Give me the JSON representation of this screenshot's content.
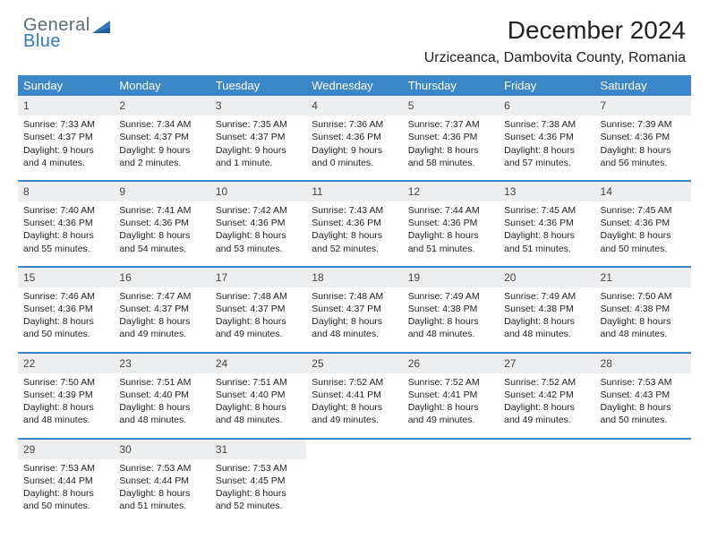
{
  "logo": {
    "word1": "General",
    "word2": "Blue",
    "word1_color": "#5b6b75",
    "word2_color": "#2f7abf",
    "icon_color": "#2f7abf"
  },
  "title": "December 2024",
  "subtitle": "Urziceanca, Dambovita County, Romania",
  "colors": {
    "header_bg": "#3c87c7",
    "header_text": "#ffffff",
    "daynum_bg": "#eceeef",
    "week_divider": "#3c87c7",
    "body_text": "#222222",
    "background": "#ffffff"
  },
  "typography": {
    "title_fontsize": 28,
    "subtitle_fontsize": 16,
    "header_fontsize": 13,
    "daynum_fontsize": 12,
    "body_fontsize": 10.5,
    "font_family": "Arial"
  },
  "day_headers": [
    "Sunday",
    "Monday",
    "Tuesday",
    "Wednesday",
    "Thursday",
    "Friday",
    "Saturday"
  ],
  "weeks": [
    [
      {
        "n": "1",
        "sr": "Sunrise: 7:33 AM",
        "ss": "Sunset: 4:37 PM",
        "dl": "Daylight: 9 hours and 4 minutes."
      },
      {
        "n": "2",
        "sr": "Sunrise: 7:34 AM",
        "ss": "Sunset: 4:37 PM",
        "dl": "Daylight: 9 hours and 2 minutes."
      },
      {
        "n": "3",
        "sr": "Sunrise: 7:35 AM",
        "ss": "Sunset: 4:37 PM",
        "dl": "Daylight: 9 hours and 1 minute."
      },
      {
        "n": "4",
        "sr": "Sunrise: 7:36 AM",
        "ss": "Sunset: 4:36 PM",
        "dl": "Daylight: 9 hours and 0 minutes."
      },
      {
        "n": "5",
        "sr": "Sunrise: 7:37 AM",
        "ss": "Sunset: 4:36 PM",
        "dl": "Daylight: 8 hours and 58 minutes."
      },
      {
        "n": "6",
        "sr": "Sunrise: 7:38 AM",
        "ss": "Sunset: 4:36 PM",
        "dl": "Daylight: 8 hours and 57 minutes."
      },
      {
        "n": "7",
        "sr": "Sunrise: 7:39 AM",
        "ss": "Sunset: 4:36 PM",
        "dl": "Daylight: 8 hours and 56 minutes."
      }
    ],
    [
      {
        "n": "8",
        "sr": "Sunrise: 7:40 AM",
        "ss": "Sunset: 4:36 PM",
        "dl": "Daylight: 8 hours and 55 minutes."
      },
      {
        "n": "9",
        "sr": "Sunrise: 7:41 AM",
        "ss": "Sunset: 4:36 PM",
        "dl": "Daylight: 8 hours and 54 minutes."
      },
      {
        "n": "10",
        "sr": "Sunrise: 7:42 AM",
        "ss": "Sunset: 4:36 PM",
        "dl": "Daylight: 8 hours and 53 minutes."
      },
      {
        "n": "11",
        "sr": "Sunrise: 7:43 AM",
        "ss": "Sunset: 4:36 PM",
        "dl": "Daylight: 8 hours and 52 minutes."
      },
      {
        "n": "12",
        "sr": "Sunrise: 7:44 AM",
        "ss": "Sunset: 4:36 PM",
        "dl": "Daylight: 8 hours and 51 minutes."
      },
      {
        "n": "13",
        "sr": "Sunrise: 7:45 AM",
        "ss": "Sunset: 4:36 PM",
        "dl": "Daylight: 8 hours and 51 minutes."
      },
      {
        "n": "14",
        "sr": "Sunrise: 7:45 AM",
        "ss": "Sunset: 4:36 PM",
        "dl": "Daylight: 8 hours and 50 minutes."
      }
    ],
    [
      {
        "n": "15",
        "sr": "Sunrise: 7:46 AM",
        "ss": "Sunset: 4:36 PM",
        "dl": "Daylight: 8 hours and 50 minutes."
      },
      {
        "n": "16",
        "sr": "Sunrise: 7:47 AM",
        "ss": "Sunset: 4:37 PM",
        "dl": "Daylight: 8 hours and 49 minutes."
      },
      {
        "n": "17",
        "sr": "Sunrise: 7:48 AM",
        "ss": "Sunset: 4:37 PM",
        "dl": "Daylight: 8 hours and 49 minutes."
      },
      {
        "n": "18",
        "sr": "Sunrise: 7:48 AM",
        "ss": "Sunset: 4:37 PM",
        "dl": "Daylight: 8 hours and 48 minutes."
      },
      {
        "n": "19",
        "sr": "Sunrise: 7:49 AM",
        "ss": "Sunset: 4:38 PM",
        "dl": "Daylight: 8 hours and 48 minutes."
      },
      {
        "n": "20",
        "sr": "Sunrise: 7:49 AM",
        "ss": "Sunset: 4:38 PM",
        "dl": "Daylight: 8 hours and 48 minutes."
      },
      {
        "n": "21",
        "sr": "Sunrise: 7:50 AM",
        "ss": "Sunset: 4:38 PM",
        "dl": "Daylight: 8 hours and 48 minutes."
      }
    ],
    [
      {
        "n": "22",
        "sr": "Sunrise: 7:50 AM",
        "ss": "Sunset: 4:39 PM",
        "dl": "Daylight: 8 hours and 48 minutes."
      },
      {
        "n": "23",
        "sr": "Sunrise: 7:51 AM",
        "ss": "Sunset: 4:40 PM",
        "dl": "Daylight: 8 hours and 48 minutes."
      },
      {
        "n": "24",
        "sr": "Sunrise: 7:51 AM",
        "ss": "Sunset: 4:40 PM",
        "dl": "Daylight: 8 hours and 48 minutes."
      },
      {
        "n": "25",
        "sr": "Sunrise: 7:52 AM",
        "ss": "Sunset: 4:41 PM",
        "dl": "Daylight: 8 hours and 49 minutes."
      },
      {
        "n": "26",
        "sr": "Sunrise: 7:52 AM",
        "ss": "Sunset: 4:41 PM",
        "dl": "Daylight: 8 hours and 49 minutes."
      },
      {
        "n": "27",
        "sr": "Sunrise: 7:52 AM",
        "ss": "Sunset: 4:42 PM",
        "dl": "Daylight: 8 hours and 49 minutes."
      },
      {
        "n": "28",
        "sr": "Sunrise: 7:53 AM",
        "ss": "Sunset: 4:43 PM",
        "dl": "Daylight: 8 hours and 50 minutes."
      }
    ],
    [
      {
        "n": "29",
        "sr": "Sunrise: 7:53 AM",
        "ss": "Sunset: 4:44 PM",
        "dl": "Daylight: 8 hours and 50 minutes."
      },
      {
        "n": "30",
        "sr": "Sunrise: 7:53 AM",
        "ss": "Sunset: 4:44 PM",
        "dl": "Daylight: 8 hours and 51 minutes."
      },
      {
        "n": "31",
        "sr": "Sunrise: 7:53 AM",
        "ss": "Sunset: 4:45 PM",
        "dl": "Daylight: 8 hours and 52 minutes."
      },
      {
        "empty": true
      },
      {
        "empty": true
      },
      {
        "empty": true
      },
      {
        "empty": true
      }
    ]
  ]
}
